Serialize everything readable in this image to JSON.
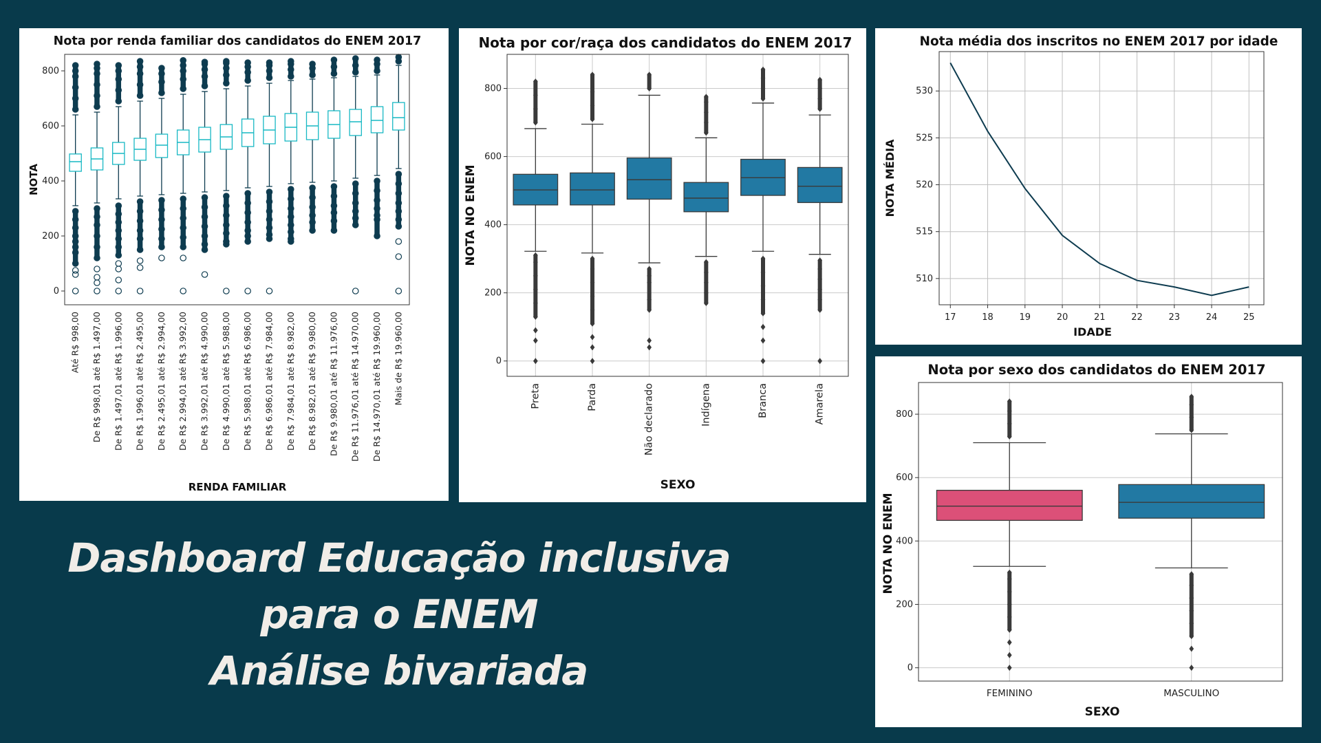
{
  "dashboard": {
    "title_line1": "Dashboard Educação inclusiva",
    "title_line2": "para o ENEM",
    "title_line3": "Análise bivariada"
  },
  "colors": {
    "background": "#083a4b",
    "income_box": "#17b8c4",
    "income_outlier": "#0d3b4f",
    "race_box": "#2279a3",
    "age_line": "#0d3b4f",
    "sex_feminino": "#dc5078",
    "sex_masculino": "#2279a3"
  },
  "chart_data": [
    {
      "id": "income",
      "type": "boxplot",
      "title": "Nota por renda familiar dos candidatos do ENEM 2017",
      "xlabel": "RENDA FAMILIAR",
      "ylabel": "NOTA",
      "ylim": [
        -50,
        860
      ],
      "yticks": [
        0,
        200,
        400,
        600,
        800
      ],
      "grid": false,
      "categories": [
        "Até R$ 998,00",
        "De R$ 998,01 até R$ 1.497,00",
        "De R$ 1.497,01 até R$ 1.996,00",
        "De R$ 1.996,01 até R$ 2.495,00",
        "De R$ 2.495,01 até R$ 2.994,00",
        "De R$ 2.994,01 até R$ 3.992,00",
        "De R$ 3.992,01 até R$ 4.990,00",
        "De R$ 4.990,01 até R$ 5.988,00",
        "De R$ 5.988,01 até R$ 6.986,00",
        "De R$ 6.986,01 até R$ 7.984,00",
        "De R$ 7.984,01 até R$ 8.982,00",
        "De R$ 8.982,01 até R$ 9.980,00",
        "De R$ 9.980,01 até R$ 11.976,00",
        "De R$ 11.976,01 até R$ 14.970,00",
        "De R$ 14.970,01 até R$ 19.960,00",
        "Mais de R$ 19.960,00"
      ],
      "boxes": [
        {
          "whislo": 310,
          "q1": 435,
          "med": 470,
          "q3": 498,
          "whishi": 640,
          "fliers_low": [
            290,
            260,
            230,
            200,
            180,
            160,
            140,
            100,
            75,
            60,
            0
          ],
          "fliers_high": [
            660,
            700,
            740,
            780,
            800,
            820
          ]
        },
        {
          "whislo": 320,
          "q1": 440,
          "med": 480,
          "q3": 520,
          "whishi": 650,
          "fliers_low": [
            300,
            270,
            240,
            200,
            160,
            120,
            80,
            50,
            30,
            0
          ],
          "fliers_high": [
            670,
            710,
            750,
            790,
            810,
            825
          ]
        },
        {
          "whislo": 335,
          "q1": 460,
          "med": 500,
          "q3": 540,
          "whishi": 670,
          "fliers_low": [
            310,
            280,
            250,
            220,
            190,
            160,
            130,
            100,
            80,
            40,
            0
          ],
          "fliers_high": [
            690,
            730,
            770,
            800,
            820
          ]
        },
        {
          "whislo": 345,
          "q1": 475,
          "med": 515,
          "q3": 555,
          "whishi": 690,
          "fliers_low": [
            325,
            290,
            255,
            220,
            190,
            150,
            110,
            85,
            0
          ],
          "fliers_high": [
            710,
            750,
            790,
            815,
            835
          ]
        },
        {
          "whislo": 350,
          "q1": 485,
          "med": 530,
          "q3": 570,
          "whishi": 700,
          "fliers_low": [
            330,
            295,
            260,
            225,
            190,
            160,
            120
          ],
          "fliers_high": [
            720,
            760,
            790,
            810
          ]
        },
        {
          "whislo": 355,
          "q1": 495,
          "med": 540,
          "q3": 585,
          "whishi": 715,
          "fliers_low": [
            335,
            300,
            265,
            230,
            195,
            160,
            120,
            0
          ],
          "fliers_high": [
            735,
            770,
            800,
            820,
            838
          ]
        },
        {
          "whislo": 360,
          "q1": 505,
          "med": 550,
          "q3": 595,
          "whishi": 725,
          "fliers_low": [
            340,
            305,
            270,
            235,
            200,
            170,
            150,
            60
          ],
          "fliers_high": [
            745,
            780,
            805,
            825,
            832
          ]
        },
        {
          "whislo": 365,
          "q1": 515,
          "med": 560,
          "q3": 605,
          "whishi": 735,
          "fliers_low": [
            345,
            310,
            275,
            240,
            210,
            180,
            170,
            0
          ],
          "fliers_high": [
            755,
            785,
            810,
            828,
            835
          ]
        },
        {
          "whislo": 375,
          "q1": 525,
          "med": 575,
          "q3": 625,
          "whishi": 745,
          "fliers_low": [
            355,
            320,
            285,
            250,
            220,
            200,
            180,
            0
          ],
          "fliers_high": [
            765,
            795,
            815,
            830
          ]
        },
        {
          "whislo": 380,
          "q1": 535,
          "med": 585,
          "q3": 635,
          "whishi": 755,
          "fliers_low": [
            360,
            325,
            290,
            260,
            230,
            205,
            190,
            0
          ],
          "fliers_high": [
            775,
            800,
            820,
            830
          ]
        },
        {
          "whislo": 390,
          "q1": 545,
          "med": 595,
          "q3": 645,
          "whishi": 765,
          "fliers_low": [
            370,
            335,
            300,
            270,
            240,
            215,
            190,
            180
          ],
          "fliers_high": [
            780,
            805,
            825,
            835
          ]
        },
        {
          "whislo": 395,
          "q1": 550,
          "med": 600,
          "q3": 650,
          "whishi": 770,
          "fliers_low": [
            375,
            340,
            305,
            275,
            250,
            220
          ],
          "fliers_high": [
            785,
            810,
            825
          ]
        },
        {
          "whislo": 400,
          "q1": 555,
          "med": 605,
          "q3": 655,
          "whishi": 775,
          "fliers_low": [
            380,
            345,
            310,
            285,
            255,
            220
          ],
          "fliers_high": [
            790,
            815,
            840
          ]
        },
        {
          "whislo": 410,
          "q1": 565,
          "med": 615,
          "q3": 660,
          "whishi": 780,
          "fliers_low": [
            390,
            355,
            320,
            290,
            265,
            240,
            0
          ],
          "fliers_high": [
            795,
            820,
            845
          ]
        },
        {
          "whislo": 420,
          "q1": 575,
          "med": 620,
          "q3": 670,
          "whishi": 785,
          "fliers_low": [
            400,
            365,
            330,
            300,
            275,
            260,
            200
          ],
          "fliers_high": [
            800,
            825,
            840
          ]
        },
        {
          "whislo": 445,
          "q1": 585,
          "med": 630,
          "q3": 685,
          "whishi": 820,
          "fliers_low": [
            425,
            390,
            355,
            320,
            290,
            260,
            235,
            180,
            125,
            0
          ],
          "fliers_high": [
            835,
            850
          ]
        }
      ]
    },
    {
      "id": "race",
      "type": "boxplot",
      "title": "Nota por cor/raça dos candidatos do ENEM 2017",
      "xlabel": "SEXO",
      "ylabel": "NOTA NO ENEM",
      "ylim": [
        -45,
        900
      ],
      "yticks": [
        0,
        200,
        400,
        600,
        800
      ],
      "grid": true,
      "categories": [
        "Preta",
        "Parda",
        "Não declarado",
        "Indígena",
        "Branca",
        "Amarela"
      ],
      "boxes": [
        {
          "whislo": 322,
          "q1": 458,
          "med": 502,
          "q3": 548,
          "whishi": 682,
          "fliers_low": [
            0,
            60,
            90,
            130,
            170,
            210,
            250,
            290,
            310
          ],
          "fliers_high": [
            700,
            740,
            780,
            820
          ]
        },
        {
          "whislo": 317,
          "q1": 458,
          "med": 502,
          "q3": 552,
          "whishi": 695,
          "fliers_low": [
            0,
            40,
            70,
            110,
            150,
            190,
            230,
            270,
            300
          ],
          "fliers_high": [
            710,
            750,
            790,
            840
          ]
        },
        {
          "whislo": 288,
          "q1": 475,
          "med": 532,
          "q3": 596,
          "whishi": 780,
          "fliers_low": [
            40,
            60,
            150,
            180,
            230,
            250,
            270
          ],
          "fliers_high": [
            800,
            840
          ]
        },
        {
          "whislo": 307,
          "q1": 438,
          "med": 478,
          "q3": 524,
          "whishi": 655,
          "fliers_low": [
            170,
            200,
            230,
            260,
            290
          ],
          "fliers_high": [
            670,
            700,
            730,
            760,
            775
          ]
        },
        {
          "whislo": 322,
          "q1": 486,
          "med": 538,
          "q3": 592,
          "whishi": 757,
          "fliers_low": [
            0,
            60,
            100,
            140,
            180,
            220,
            260,
            300
          ],
          "fliers_high": [
            770,
            800,
            830,
            855
          ]
        },
        {
          "whislo": 313,
          "q1": 465,
          "med": 513,
          "q3": 568,
          "whishi": 722,
          "fliers_low": [
            0,
            150,
            180,
            210,
            240,
            270,
            295
          ],
          "fliers_high": [
            740,
            770,
            800,
            825
          ]
        }
      ]
    },
    {
      "id": "age",
      "type": "line",
      "title": "Nota média dos inscritos no ENEM 2017 por idade",
      "xlabel": "IDADE",
      "ylabel": "NOTA MÉDIA",
      "x": [
        17,
        18,
        19,
        20,
        21,
        22,
        23,
        24,
        25
      ],
      "y": [
        533.0,
        525.7,
        519.6,
        514.6,
        511.6,
        509.8,
        509.1,
        508.2,
        509.1
      ],
      "xlim": [
        16.7,
        25.4
      ],
      "ylim": [
        507.2,
        534.2
      ],
      "yticks": [
        510,
        515,
        520,
        525,
        530
      ],
      "grid": true
    },
    {
      "id": "sex",
      "type": "boxplot",
      "title": "Nota por sexo dos candidatos do ENEM 2017",
      "xlabel": "SEXO",
      "ylabel": "NOTA NO ENEM",
      "ylim": [
        -42,
        900
      ],
      "yticks": [
        0,
        200,
        400,
        600,
        800
      ],
      "grid": true,
      "categories": [
        "FEMININO",
        "MASCULINO"
      ],
      "boxes": [
        {
          "whislo": 320,
          "q1": 465,
          "med": 510,
          "q3": 560,
          "whishi": 710,
          "fliers_low": [
            0,
            40,
            80,
            120,
            160,
            200,
            240,
            280,
            300
          ],
          "fliers_high": [
            730,
            770,
            810,
            840
          ]
        },
        {
          "whislo": 315,
          "q1": 472,
          "med": 522,
          "q3": 578,
          "whishi": 738,
          "fliers_low": [
            0,
            60,
            100,
            140,
            180,
            220,
            260,
            295
          ],
          "fliers_high": [
            750,
            790,
            830,
            855
          ]
        }
      ]
    }
  ]
}
